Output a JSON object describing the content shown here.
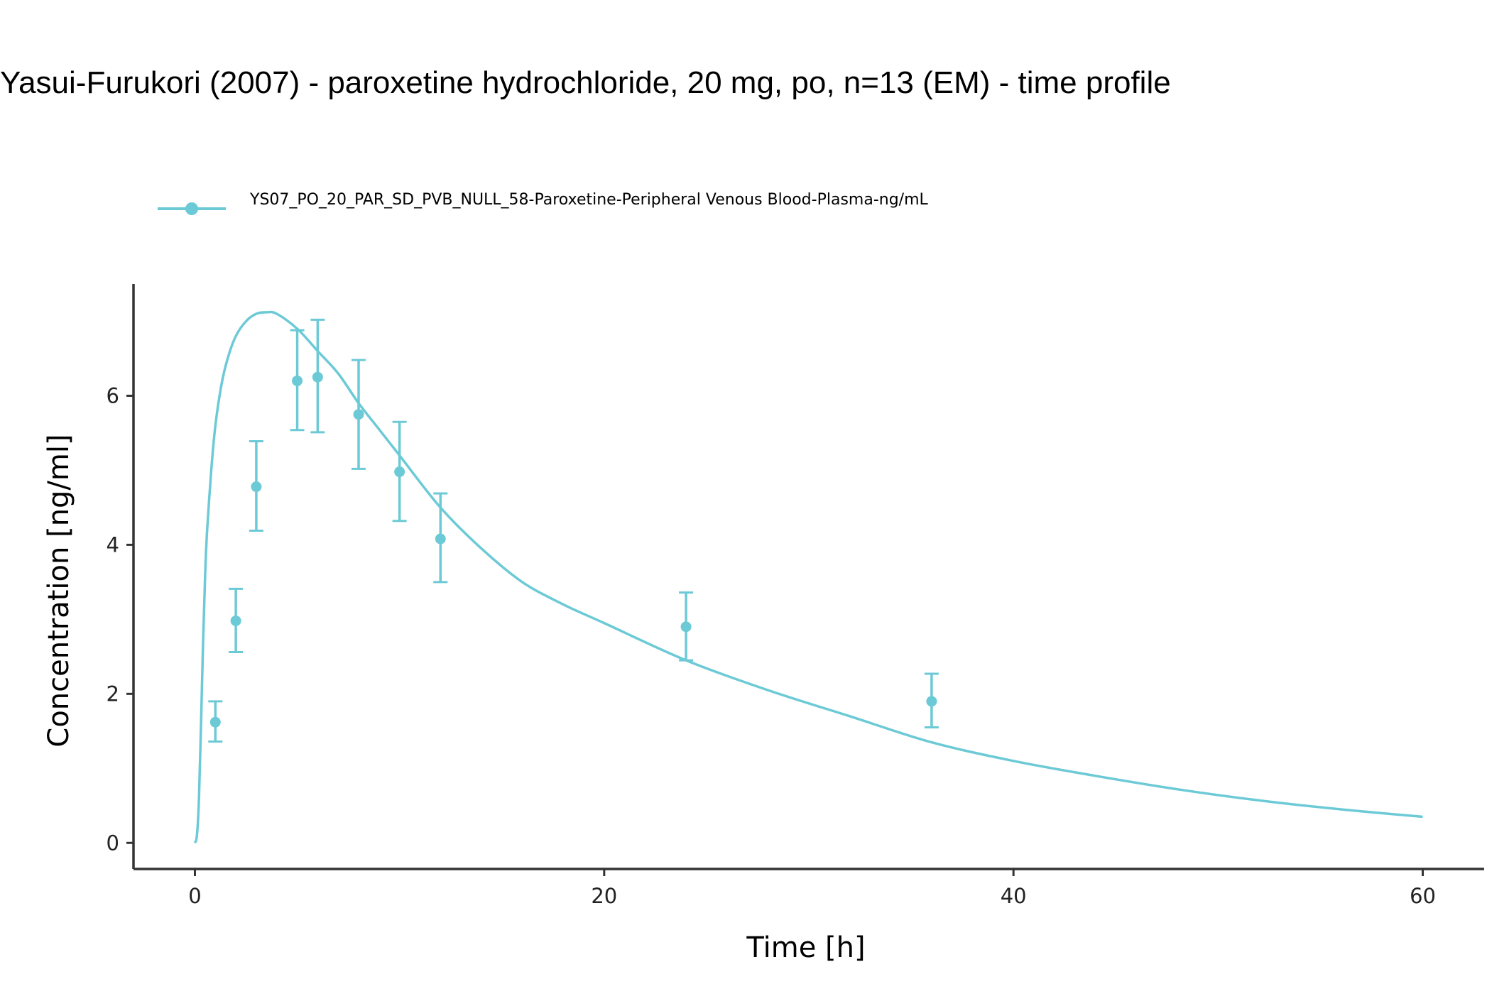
{
  "chart_data": {
    "type": "line",
    "title": "Yasui-Furukori (2007) - paroxetine hydrochloride, 20 mg, po, n=13 (EM) - time profile",
    "xlabel": "Time [h]",
    "ylabel": "Concentration [ng/ml]",
    "xlim": [
      -3,
      63
    ],
    "ylim": [
      -0.35,
      7.5
    ],
    "x_ticks": [
      0,
      20,
      40,
      60
    ],
    "y_ticks": [
      0,
      2,
      4,
      6
    ],
    "grid": false,
    "legend_position": "top-left",
    "color": "#6CCAD6",
    "legend": "YS07_PO_20_PAR_SD_PVB_NULL_58-Paroxetine-Peripheral Venous Blood-Plasma-ng/mL",
    "simulated_curve": {
      "x": [
        0,
        0.1,
        0.2,
        0.3,
        0.4,
        0.5,
        0.6,
        0.8,
        1,
        1.3,
        1.6,
        2,
        2.5,
        3,
        3.5,
        4,
        5,
        6,
        7,
        8,
        9,
        10,
        12,
        14,
        16,
        18,
        20,
        24,
        28,
        32,
        36,
        40,
        44,
        48,
        52,
        56,
        60
      ],
      "y": [
        0,
        0.1,
        0.6,
        1.6,
        2.7,
        3.6,
        4.2,
        5.0,
        5.6,
        6.15,
        6.5,
        6.8,
        7.0,
        7.1,
        7.12,
        7.1,
        6.9,
        6.6,
        6.3,
        5.9,
        5.55,
        5.2,
        4.5,
        3.95,
        3.5,
        3.2,
        2.95,
        2.45,
        2.05,
        1.7,
        1.35,
        1.1,
        0.9,
        0.72,
        0.57,
        0.45,
        0.35
      ]
    },
    "observed": {
      "x": [
        1,
        2,
        3,
        5,
        6,
        8,
        10,
        12,
        24,
        36
      ],
      "y": [
        1.62,
        2.98,
        4.78,
        6.2,
        6.25,
        5.75,
        4.98,
        4.08,
        2.9,
        1.9
      ],
      "y_lower": [
        1.36,
        2.56,
        4.19,
        5.54,
        5.51,
        5.02,
        4.32,
        3.5,
        2.45,
        1.55
      ],
      "y_upper": [
        1.9,
        3.41,
        5.39,
        6.88,
        7.02,
        6.48,
        5.65,
        4.69,
        3.36,
        2.27
      ]
    }
  }
}
